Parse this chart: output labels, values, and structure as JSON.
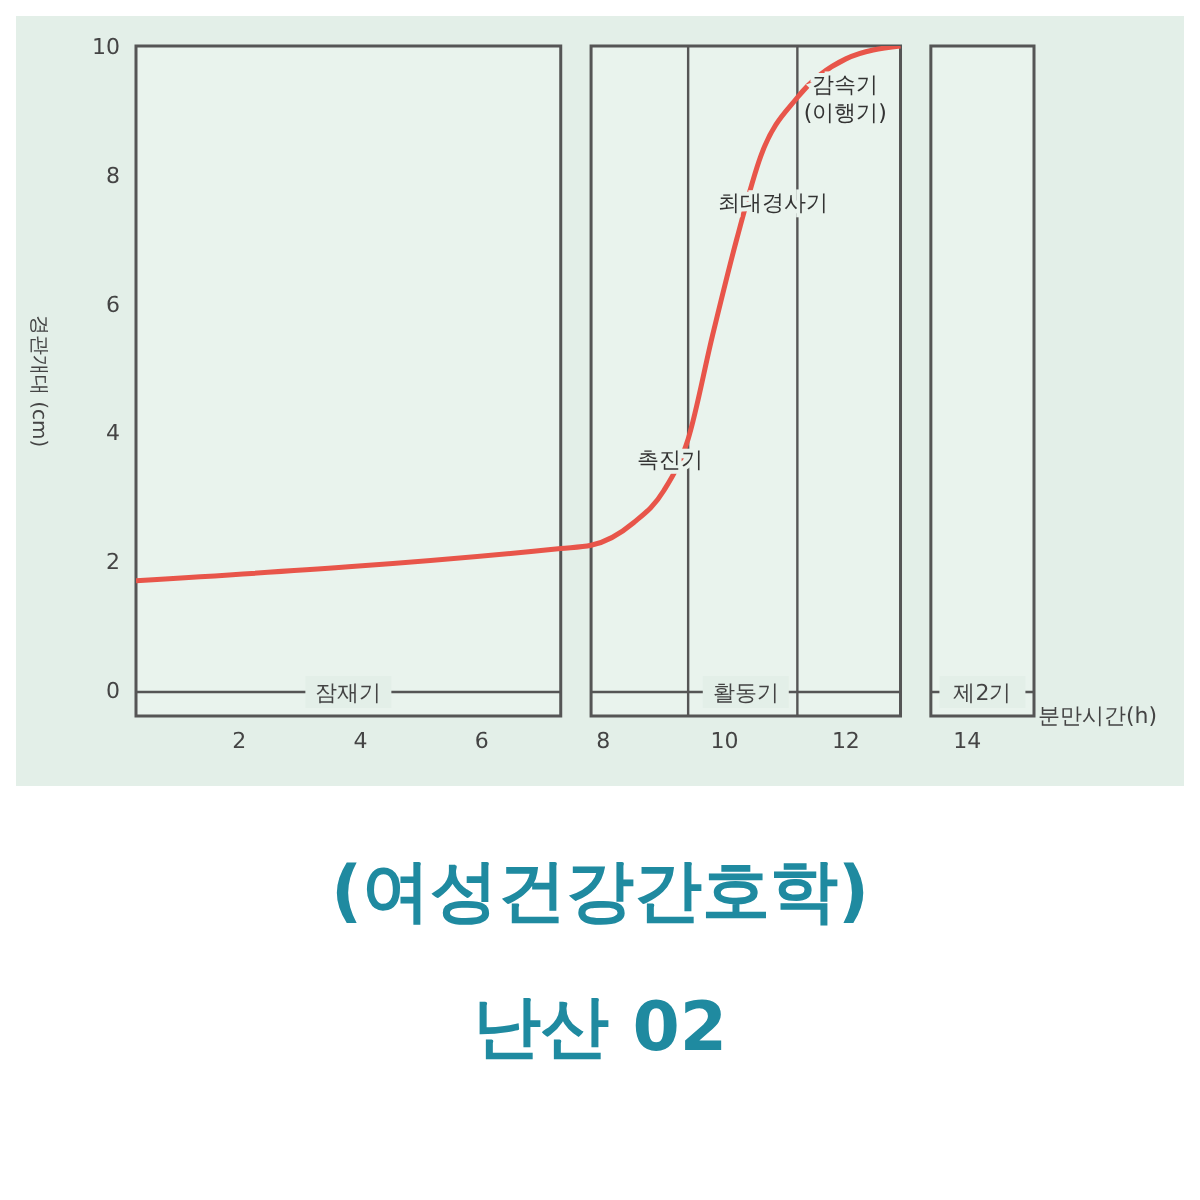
{
  "chart_data": {
    "type": "line",
    "title": "(여성건강간호학)",
    "subtitle": "난산 02",
    "xlabel": "분만시간(h)",
    "ylabel": "경관개대 (cm)",
    "x": [
      0.3,
      7.3,
      7.8,
      8.5,
      9.0,
      9.4,
      9.8,
      10.2,
      10.6,
      11.2,
      12.0,
      12.9
    ],
    "series": [
      {
        "color": "#e8554a",
        "values": [
          1.7,
          2.2,
          2.25,
          2.6,
          3.1,
          3.9,
          5.5,
          7.0,
          8.3,
          9.2,
          9.8,
          10.0
        ]
      }
    ],
    "xlim": [
      0.3,
      15.1
    ],
    "ylim": [
      -0.4,
      10
    ],
    "xticks": [
      2,
      4,
      6,
      8,
      10,
      12,
      14
    ],
    "yticks": [
      0,
      2,
      4,
      6,
      8,
      10
    ],
    "bands": [
      {
        "axis": "x",
        "from": 0.3,
        "to": 7.3,
        "label": "잠재기",
        "color": "#e9f3ed"
      },
      {
        "axis": "x",
        "from": 7.8,
        "to": 12.9,
        "label": "활동기",
        "color": "#e9f3ed"
      },
      {
        "axis": "x",
        "from": 13.4,
        "to": 15.1,
        "label": "제2기",
        "color": "#e9f3ed"
      }
    ],
    "ref_lines": [
      {
        "axis": "x",
        "value": 9.4
      },
      {
        "axis": "x",
        "value": 11.2
      }
    ],
    "annotations": [
      {
        "text": "촉진기",
        "x": 9.4,
        "y": 3.9
      },
      {
        "text": "최대경사기",
        "x": 10.6,
        "y": 8.3
      },
      {
        "text": "감속기\n(이행기)",
        "x": 11.2,
        "y": 9.2
      }
    ],
    "grid": false,
    "legend": false,
    "marker": "none",
    "line_style": "solid"
  }
}
